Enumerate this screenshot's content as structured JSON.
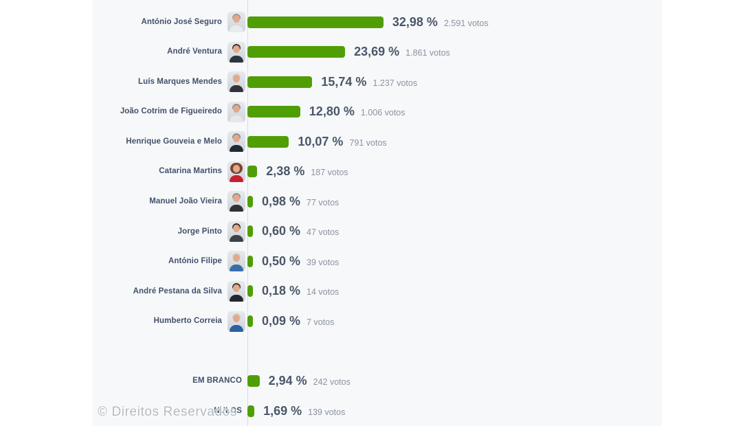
{
  "chart_data": {
    "type": "bar",
    "orientation": "horizontal",
    "title": "",
    "xlabel": "",
    "ylabel": "",
    "bar_color": "#4f9e06",
    "axis_line_color": "#d9dce2",
    "panel_background": "#f7f8fa",
    "value_format": "percent_comma_decimal",
    "rows": [
      {
        "label": "António José Seguro",
        "percent": 32.98,
        "percent_label": "32,98 %",
        "votes": 2591,
        "votes_label": "2.591 votos",
        "group": "candidate",
        "avatar": {
          "hair": "#9b9b99",
          "top": "#e9ebee"
        }
      },
      {
        "label": "André Ventura",
        "percent": 23.69,
        "percent_label": "23,69 %",
        "votes": 1861,
        "votes_label": "1.861 votos",
        "group": "candidate",
        "avatar": {
          "hair": "#3a2f28",
          "top": "#2c3442"
        }
      },
      {
        "label": "Luís Marques Mendes",
        "percent": 15.74,
        "percent_label": "15,74 %",
        "votes": 1237,
        "votes_label": "1.237 votos",
        "group": "candidate",
        "avatar": {
          "hair": "#cfcfcd",
          "top": "#32343a"
        }
      },
      {
        "label": "João Cotrim de Figueiredo",
        "percent": 12.8,
        "percent_label": "12,80 %",
        "votes": 1006,
        "votes_label": "1.006 votos",
        "group": "candidate",
        "avatar": {
          "hair": "#8e8e8c",
          "top": "#e5e7ea"
        }
      },
      {
        "label": "Henrique Gouveia e Melo",
        "percent": 10.07,
        "percent_label": "10,07 %",
        "votes": 791,
        "votes_label": "791 votos",
        "group": "candidate",
        "avatar": {
          "hair": "#8a8d90",
          "top": "#1f2a38"
        }
      },
      {
        "label": "Catarina Martins",
        "percent": 2.38,
        "percent_label": "2,38 %",
        "votes": 187,
        "votes_label": "187 votos",
        "group": "candidate",
        "avatar": {
          "hair": "#7a452f",
          "top": "#c42231",
          "female": true
        }
      },
      {
        "label": "Manuel João Vieira",
        "percent": 0.98,
        "percent_label": "0,98 %",
        "votes": 77,
        "votes_label": "77 votos",
        "group": "candidate",
        "avatar": {
          "hair": "#8f8f8d",
          "top": "#2f3236"
        }
      },
      {
        "label": "Jorge Pinto",
        "percent": 0.6,
        "percent_label": "0,60 %",
        "votes": 47,
        "votes_label": "47 votos",
        "group": "candidate",
        "avatar": {
          "hair": "#33302c",
          "top": "#3c4248"
        }
      },
      {
        "label": "António Filipe",
        "percent": 0.5,
        "percent_label": "0,50 %",
        "votes": 39,
        "votes_label": "39 votos",
        "group": "candidate",
        "avatar": {
          "hair": "#d5d5d3",
          "top": "#3a6ea8"
        }
      },
      {
        "label": "André Pestana da Silva",
        "percent": 0.18,
        "percent_label": "0,18 %",
        "votes": 14,
        "votes_label": "14 votos",
        "group": "candidate",
        "avatar": {
          "hair": "#3b332c",
          "top": "#23272e"
        }
      },
      {
        "label": "Humberto Correia",
        "percent": 0.09,
        "percent_label": "0,09 %",
        "votes": 7,
        "votes_label": "7 votos",
        "group": "candidate",
        "avatar": {
          "hair": "#d8cdc2",
          "top": "#2e5fa3"
        }
      },
      {
        "label": "EM BRANCO",
        "percent": 2.94,
        "percent_label": "2,94 %",
        "votes": 242,
        "votes_label": "242 votos",
        "group": "special"
      },
      {
        "label": "NULOS",
        "percent": 1.69,
        "percent_label": "1,69 %",
        "votes": 139,
        "votes_label": "139 votos",
        "group": "special"
      }
    ]
  },
  "watermark": "© Direitos Reservados",
  "colors": {
    "bar": "#4f9e06",
    "name_text": "#42506a",
    "percent_text": "#4a5768",
    "votes_text": "#8a93a0",
    "axis_line": "#d9dce2",
    "panel_background": "#f7f8fa",
    "page_background": "#ffffff",
    "watermark_text": "#b3bac1"
  }
}
